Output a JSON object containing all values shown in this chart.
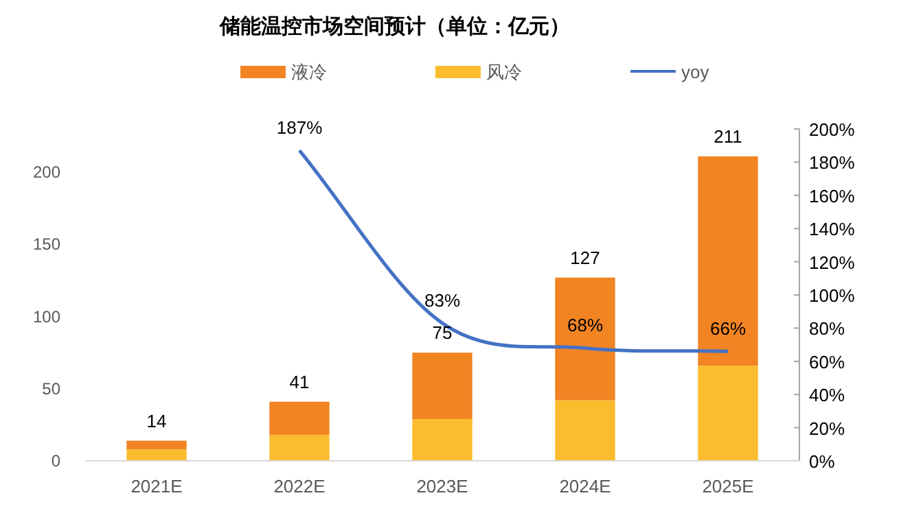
{
  "chart_data": {
    "type": "bar",
    "title": "储能温控市场空间预计（单位：亿元）",
    "categories": [
      "2021E",
      "2022E",
      "2023E",
      "2024E",
      "2025E"
    ],
    "stacked": true,
    "series": [
      {
        "name": "风冷",
        "color": "#fbbc2e",
        "values": [
          8,
          18,
          29,
          42,
          66
        ]
      },
      {
        "name": "液冷",
        "color": "#f28424",
        "values": [
          6,
          23,
          46,
          85,
          145
        ]
      },
      {
        "name": "yoy",
        "type": "line",
        "axis": "y2",
        "color": "#4472c4",
        "values": [
          null,
          187,
          83,
          68,
          66
        ],
        "value_labels": [
          null,
          "187%",
          "83%",
          "68%",
          "66%"
        ]
      }
    ],
    "totals": [
      "14",
      "41",
      "75",
      "127",
      "211"
    ],
    "ylim": [
      0,
      230
    ],
    "yticks": [
      0,
      50,
      100,
      150,
      200
    ],
    "y2lim": [
      0,
      200
    ],
    "y2ticks": [
      {
        "value": 0,
        "label": "0%"
      },
      {
        "value": 20,
        "label": "20%"
      },
      {
        "value": 40,
        "label": "40%"
      },
      {
        "value": 60,
        "label": "60%"
      },
      {
        "value": 80,
        "label": "80%"
      },
      {
        "value": 100,
        "label": "100%"
      },
      {
        "value": 120,
        "label": "120%"
      },
      {
        "value": 140,
        "label": "140%"
      },
      {
        "value": 160,
        "label": "160%"
      },
      {
        "value": 180,
        "label": "180%"
      },
      {
        "value": 200,
        "label": "200%"
      }
    ],
    "grid": false,
    "legend": "top",
    "marker": "none",
    "line_style": "solid"
  }
}
